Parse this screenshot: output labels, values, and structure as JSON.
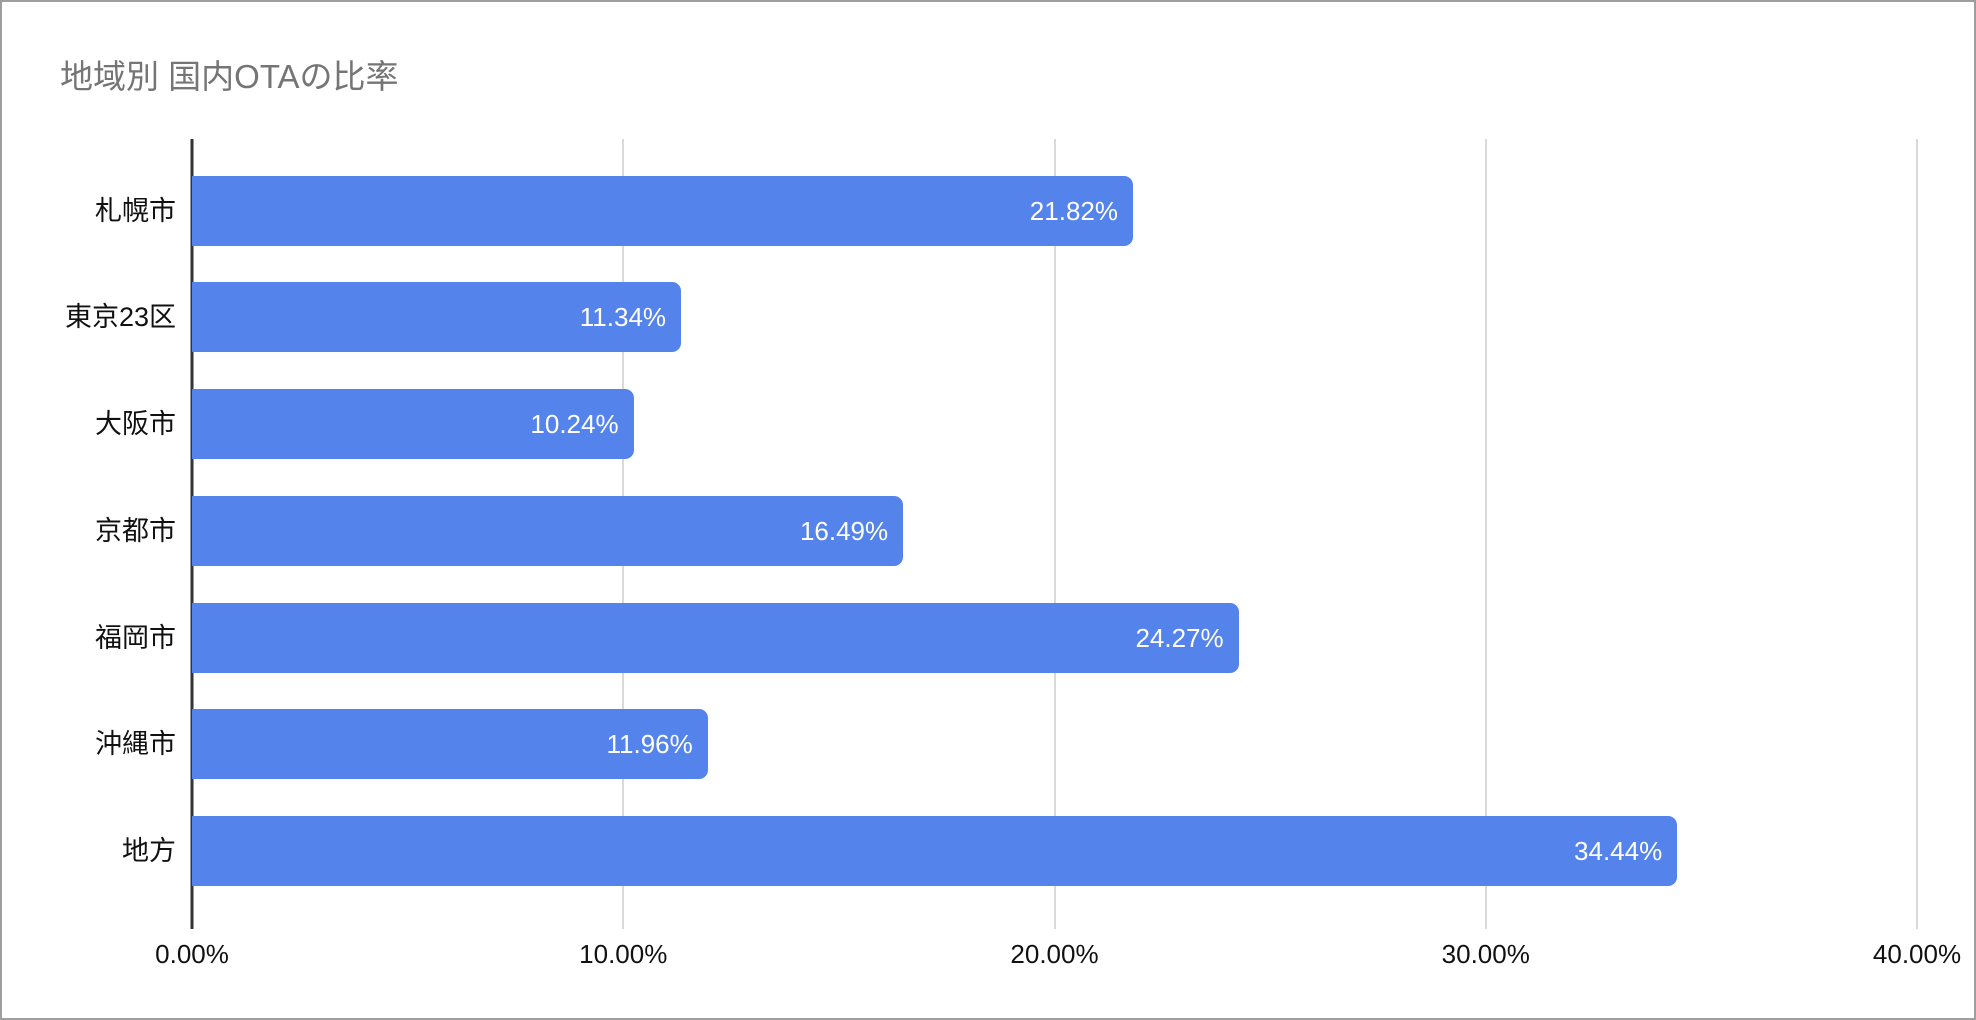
{
  "title": "地域別 国内OTAの比率",
  "colors": {
    "bar": "#5383eb",
    "title_text": "#757575",
    "axis_line": "#333333",
    "gridline": "#d9d9d9",
    "value_text": "#ffffff",
    "label_text": "#111111",
    "border": "#9e9e9e",
    "background": "#ffffff"
  },
  "chart_data": {
    "type": "bar",
    "orientation": "horizontal",
    "title": "地域別 国内OTAの比率",
    "categories": [
      "札幌市",
      "東京23区",
      "大阪市",
      "京都市",
      "福岡市",
      "沖縄市",
      "地方"
    ],
    "values": [
      21.82,
      11.34,
      10.24,
      16.49,
      24.27,
      11.96,
      34.44
    ],
    "value_labels": [
      "21.82%",
      "11.34%",
      "10.24%",
      "16.49%",
      "24.27%",
      "11.96%",
      "34.44%"
    ],
    "xlabel": "",
    "ylabel": "",
    "xlim": [
      0,
      40
    ],
    "x_ticks": [
      0,
      10,
      20,
      30,
      40
    ],
    "x_tick_labels": [
      "0.00%",
      "10.00%",
      "20.00%",
      "30.00%",
      "40.00%"
    ],
    "grid": "vertical-only",
    "legend": "none",
    "value_label_position": "inside-end"
  }
}
